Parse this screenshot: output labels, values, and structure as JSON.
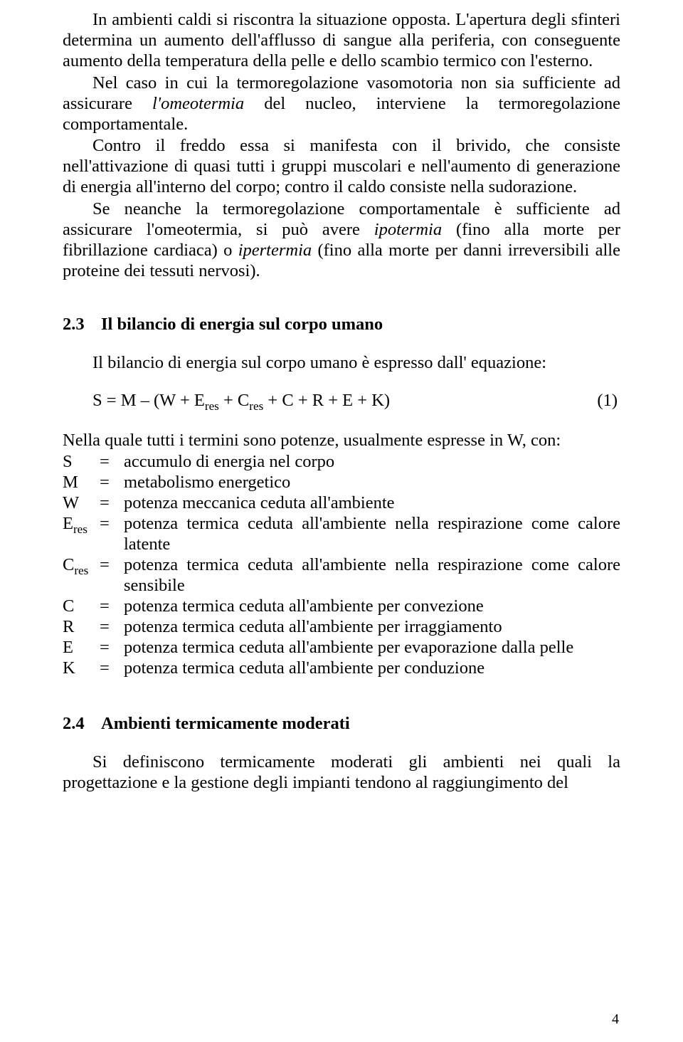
{
  "paragraphs": {
    "p1": "In ambienti caldi si riscontra la situazione opposta. L'apertura degli sfinteri determina un aumento dell'afflusso di sangue alla periferia, con conseguente aumento della temperatura della pelle e dello scambio termico con l'esterno.",
    "p2_a": "Nel caso in cui la termoregolazione vasomotoria non sia sufficiente ad assicurare ",
    "p2_i1": "l'omeotermia",
    "p2_b": " del nucleo, interviene la termoregolazione comportamentale.",
    "p3": "Contro il freddo essa si manifesta con il brivido, che consiste nell'attivazione di quasi tutti i gruppi muscolari e nell'aumento di generazione di energia all'interno del corpo; contro il caldo consiste nella sudorazione.",
    "p4_a": "Se neanche la termoregolazione comportamentale è sufficiente ad assicurare l'omeotermia,  si può avere ",
    "p4_i1": "ipotermia",
    "p4_b": " (fino alla morte per fibrillazione cardiaca) o ",
    "p4_i2": "ipertermia",
    "p4_c": " (fino alla morte per danni irreversibili alle proteine dei tessuti nervosi)."
  },
  "section23": {
    "num": "2.3",
    "title": "Il bilancio di energia  sul corpo umano",
    "intro": "Il bilancio di energia sul corpo umano è espresso dall' equazione:",
    "equation_lhs": "S = M – (W + E",
    "equation_mid1": " + C",
    "equation_tail": " + C + R + E + K)",
    "sub_res": "res",
    "eq_num": "(1)",
    "def_intro": "Nella quale tutti i termini sono potenze, usualmente espresse in W, con:",
    "defs": [
      {
        "sym": "S",
        "sub": "",
        "desc": "accumulo di energia nel corpo"
      },
      {
        "sym": "M",
        "sub": "",
        "desc": "metabolismo energetico"
      },
      {
        "sym": "W",
        "sub": "",
        "desc": "potenza meccanica ceduta all'ambiente"
      },
      {
        "sym": "E",
        "sub": "res",
        "desc": "potenza termica ceduta all'ambiente nella respirazione come calore latente"
      },
      {
        "sym": "C",
        "sub": "res",
        "desc": "potenza termica ceduta all'ambiente nella respirazione come calore sensibile"
      },
      {
        "sym": "C",
        "sub": "",
        "desc": "potenza termica ceduta all'ambiente per convezione"
      },
      {
        "sym": "R",
        "sub": "",
        "desc": "potenza termica ceduta all'ambiente per irraggiamento"
      },
      {
        "sym": "E",
        "sub": "",
        "desc": "potenza termica ceduta all'ambiente per evaporazione dalla pelle"
      },
      {
        "sym": "K",
        "sub": "",
        "desc": "potenza termica ceduta all'ambiente per conduzione"
      }
    ]
  },
  "section24": {
    "num": "2.4",
    "title": "Ambienti  termicamente moderati",
    "p1": "Si definiscono termicamente moderati gli ambienti nei quali la progettazione e la gestione degli impianti tendono al raggiungimento del"
  },
  "page_number": "4"
}
